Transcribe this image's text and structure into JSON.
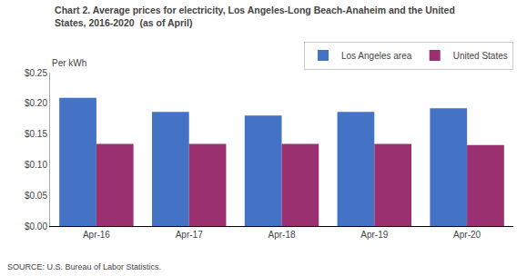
{
  "chart_data": {
    "type": "bar",
    "title": "Chart 2. Average prices for electricity, Los Angeles-Long Beach-Anaheim and the United\nStates, 2016-2020  (as of April)",
    "ylabel": "Per kWh",
    "annotations": [
      "SOURCE: U.S. Bureau of Labor Statistics."
    ],
    "categories": [
      "Apr-16",
      "Apr-17",
      "Apr-18",
      "Apr-19",
      "Apr-20"
    ],
    "series": [
      {
        "name": "Los Angeles area",
        "color": "#4472C4",
        "values": [
          0.209,
          0.186,
          0.18,
          0.186,
          0.192
        ]
      },
      {
        "name": "United States",
        "color": "#9B3070",
        "values": [
          0.134,
          0.134,
          0.134,
          0.134,
          0.132
        ]
      }
    ],
    "ylim": [
      0.0,
      0.25
    ],
    "yticks": [
      {
        "value": 0.0,
        "label": "$0.00"
      },
      {
        "value": 0.05,
        "label": "$0.05"
      },
      {
        "value": 0.1,
        "label": "$0.10"
      },
      {
        "value": 0.15,
        "label": "$0.15"
      },
      {
        "value": 0.2,
        "label": "$0.20"
      },
      {
        "value": 0.25,
        "label": "$0.25"
      }
    ],
    "grid": false,
    "legend": "upper right"
  }
}
